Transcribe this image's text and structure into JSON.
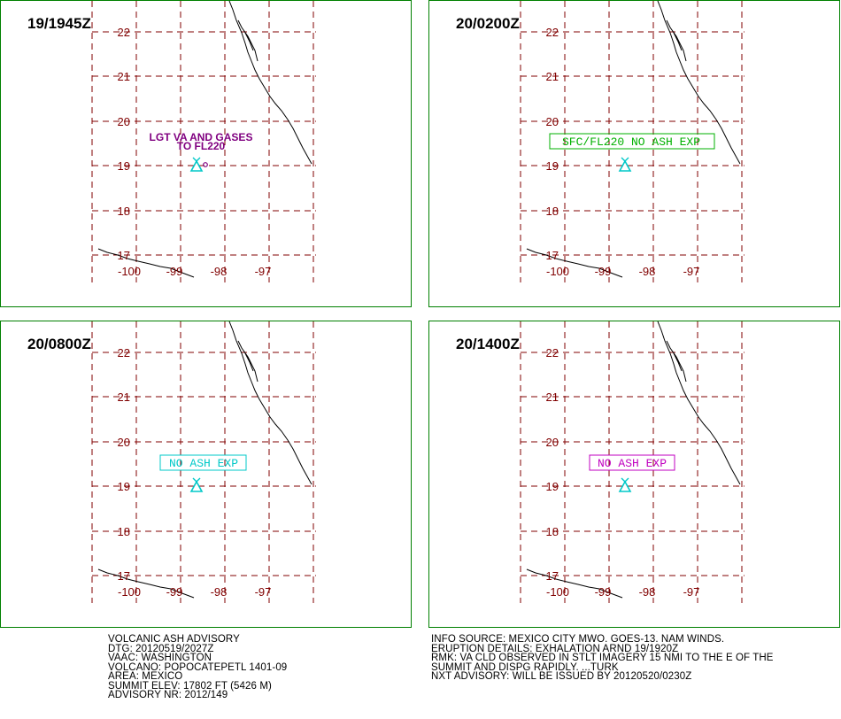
{
  "grid": {
    "lat_labels": [
      "22",
      "21",
      "20",
      "19",
      "18",
      "17"
    ],
    "lon_labels": [
      "-100",
      "-99",
      "-98",
      "-97"
    ]
  },
  "panels": [
    {
      "time": "19/1945Z",
      "label_lines": [
        "LGT VA AND GASES",
        "TO FL220"
      ],
      "label_color": "#800080",
      "boxed": false,
      "label_box_color": ""
    },
    {
      "time": "20/0200Z",
      "label_lines": [
        "SFC/FL220 NO ASH EXP"
      ],
      "label_color": "#00b000",
      "boxed": true,
      "label_box_color": "#00b000"
    },
    {
      "time": "20/0800Z",
      "label_lines": [
        "NO ASH EXP"
      ],
      "label_color": "#00c8c8",
      "boxed": true,
      "label_box_color": "#00c8c8"
    },
    {
      "time": "20/1400Z",
      "label_lines": [
        "NO ASH EXP"
      ],
      "label_color": "#c000c0",
      "boxed": true,
      "label_box_color": "#c000c0"
    }
  ],
  "colors": {
    "panel_border": "#008000",
    "grid_line": "#800000",
    "coastline": "#000000",
    "volcano_symbol": "#00c8c8"
  },
  "advisory_left": [
    "VOLCANIC ASH ADVISORY",
    "DTG: 20120519/2027Z",
    "VAAC: WASHINGTON",
    "VOLCANO: POPOCATEPETL 1401-09",
    "AREA: MEXICO",
    "SUMMIT ELEV: 17802 FT (5426 M)",
    "ADVISORY NR: 2012/149"
  ],
  "advisory_right": [
    "INFO SOURCE: MEXICO CITY MWO. GOES-13. NAM WINDS.",
    "ERUPTION DETAILS: EXHALATION ARND 19/1920Z",
    "RMK: VA CLD OBSERVED IN STLT IMAGERY 15 NMI TO THE E OF THE",
    "SUMMIT AND DISPG RAPIDLY. ...TURK",
    "NXT ADVISORY: WILL BE ISSUED BY 20120520/0230Z"
  ]
}
